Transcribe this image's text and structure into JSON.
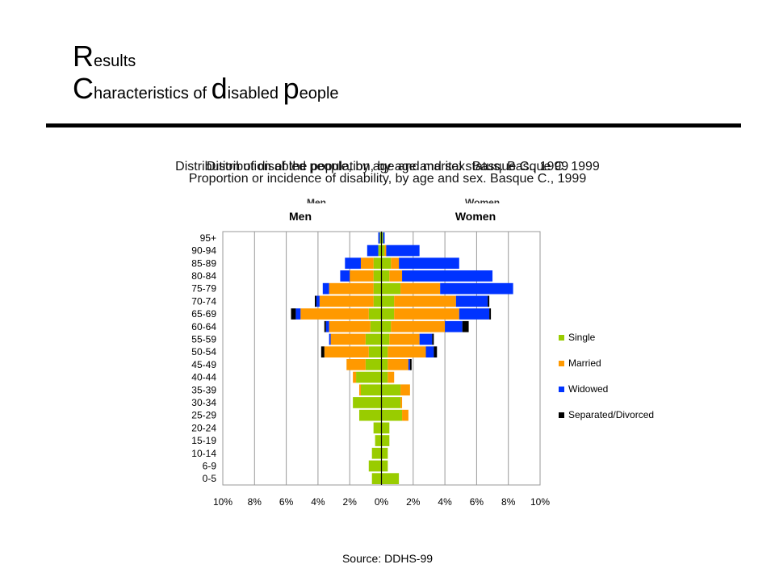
{
  "slide": {
    "title_line1_cap": "R",
    "title_line1_rest": "esults",
    "title_line2": [
      {
        "t": "C",
        "big": true
      },
      {
        "t": "haracteristics of ",
        "big": false
      },
      {
        "t": "d",
        "big": true
      },
      {
        "t": "isabled ",
        "big": false
      },
      {
        "t": "p",
        "big": true
      },
      {
        "t": "eople",
        "big": false
      }
    ],
    "overlapping_titles": [
      "Distribution of disabled people, by age and marital status. Basque C. 1999",
      "Distribution of the population, by age and sex. Basque C., 1999",
      "Proportion or incidence of disability, by age and sex. Basque C., 1999"
    ],
    "ghost_men": "Men",
    "ghost_women": "Women",
    "source": "Source: DDHS-99"
  },
  "chart_data": {
    "type": "bar",
    "orientation": "horizontal",
    "stacked": true,
    "layout": "population-pyramid",
    "panels": [
      "Men",
      "Women"
    ],
    "categories": [
      "0-5",
      "6-9",
      "10-14",
      "15-19",
      "20-24",
      "25-29",
      "30-34",
      "35-39",
      "40-44",
      "45-49",
      "50-54",
      "55-59",
      "60-64",
      "65-69",
      "70-74",
      "75-79",
      "80-84",
      "85-89",
      "90-94",
      "95+"
    ],
    "x_ticks": [
      "10%",
      "8%",
      "6%",
      "4%",
      "2%",
      "0%",
      "2%",
      "4%",
      "6%",
      "8%",
      "10%"
    ],
    "xlim": [
      -10,
      10
    ],
    "grid": true,
    "legend_position": "right",
    "series": [
      {
        "name": "Single",
        "color": "#99cc00",
        "men": [
          0.6,
          0.8,
          0.6,
          0.4,
          0.5,
          1.4,
          1.8,
          1.3,
          1.6,
          1.0,
          0.8,
          1.0,
          0.7,
          0.8,
          0.5,
          0.5,
          0.5,
          0.5,
          0.2,
          0.1
        ],
        "women": [
          1.1,
          0.4,
          0.4,
          0.5,
          0.5,
          1.3,
          1.2,
          1.2,
          0.4,
          0.4,
          0.4,
          0.5,
          0.6,
          0.8,
          0.8,
          1.2,
          0.5,
          0.6,
          0.2,
          0.1
        ]
      },
      {
        "name": "Married",
        "color": "#ff9900",
        "men": [
          0.0,
          0.0,
          0.0,
          0.0,
          0.0,
          0.0,
          0.0,
          0.1,
          0.2,
          1.2,
          2.8,
          2.2,
          2.6,
          4.3,
          3.4,
          2.8,
          1.5,
          0.8,
          0.0,
          0.0
        ],
        "women": [
          0.0,
          0.0,
          0.0,
          0.0,
          0.0,
          0.4,
          0.1,
          0.6,
          0.4,
          1.3,
          2.4,
          1.9,
          3.4,
          4.1,
          3.9,
          2.5,
          0.8,
          0.5,
          0.1,
          0.0
        ]
      },
      {
        "name": "Widowed",
        "color": "#0033ff",
        "men": [
          0.0,
          0.0,
          0.0,
          0.0,
          0.0,
          0.0,
          0.0,
          0.0,
          0.0,
          0.0,
          0.0,
          0.1,
          0.2,
          0.3,
          0.2,
          0.4,
          0.6,
          1.0,
          0.7,
          0.1
        ],
        "women": [
          0.0,
          0.0,
          0.0,
          0.0,
          0.0,
          0.0,
          0.0,
          0.0,
          0.0,
          0.1,
          0.5,
          0.8,
          1.1,
          1.9,
          2.0,
          4.6,
          5.7,
          3.8,
          2.1,
          0.1
        ]
      },
      {
        "name": "Separated/Divorced",
        "color": "#000000",
        "men": [
          0.0,
          0.0,
          0.0,
          0.0,
          0.0,
          0.0,
          0.0,
          0.0,
          0.0,
          0.0,
          0.2,
          0.0,
          0.1,
          0.3,
          0.1,
          0.0,
          0.0,
          0.0,
          0.0,
          0.0
        ],
        "women": [
          0.0,
          0.0,
          0.0,
          0.0,
          0.0,
          0.0,
          0.0,
          0.0,
          0.0,
          0.1,
          0.2,
          0.1,
          0.4,
          0.1,
          0.1,
          0.0,
          0.0,
          0.0,
          0.0,
          0.0
        ]
      }
    ]
  }
}
